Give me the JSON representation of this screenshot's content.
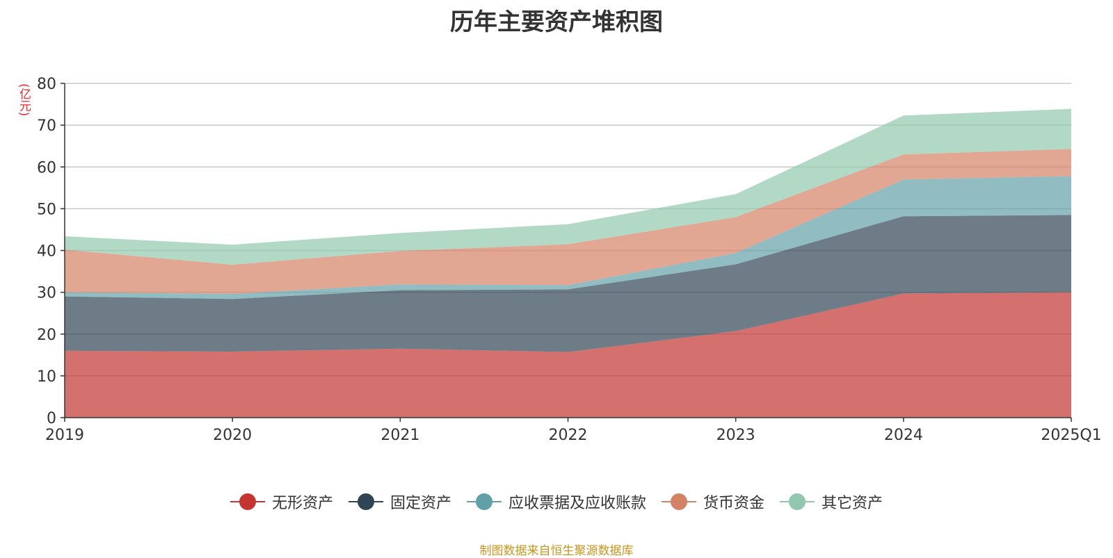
{
  "title": "历年主要资产堆积图",
  "source": "制图数据来自恒生聚源数据库",
  "chart_data": {
    "type": "area",
    "stacked": true,
    "title": "历年主要资产堆积图",
    "ylabel": "(亿元)",
    "xlabel": "",
    "ylim": [
      0,
      80
    ],
    "yticks": [
      0,
      10,
      20,
      30,
      40,
      50,
      60,
      70,
      80
    ],
    "grid": true,
    "legend_position": "bottom",
    "categories": [
      "2019",
      "2020",
      "2021",
      "2022",
      "2023",
      "2024",
      "2025Q1"
    ],
    "series": [
      {
        "name": "无形资产",
        "color": "#c23531",
        "values": [
          16.0,
          15.8,
          16.5,
          15.7,
          20.7,
          29.7,
          30.0
        ]
      },
      {
        "name": "固定资产",
        "color": "#2f4554",
        "values": [
          13.0,
          12.6,
          14.0,
          15.0,
          16.0,
          18.5,
          18.5
        ]
      },
      {
        "name": "应收票据及应收账款",
        "color": "#61a0a8",
        "values": [
          1.0,
          1.2,
          1.4,
          1.0,
          2.7,
          8.8,
          9.3
        ]
      },
      {
        "name": "货币资金",
        "color": "#d48265",
        "values": [
          10.2,
          7.0,
          8.0,
          9.8,
          8.6,
          6.0,
          6.5
        ]
      },
      {
        "name": "其它资产",
        "color": "#91c7ae",
        "values": [
          3.2,
          4.8,
          4.3,
          4.8,
          5.5,
          9.3,
          9.6
        ]
      }
    ]
  }
}
